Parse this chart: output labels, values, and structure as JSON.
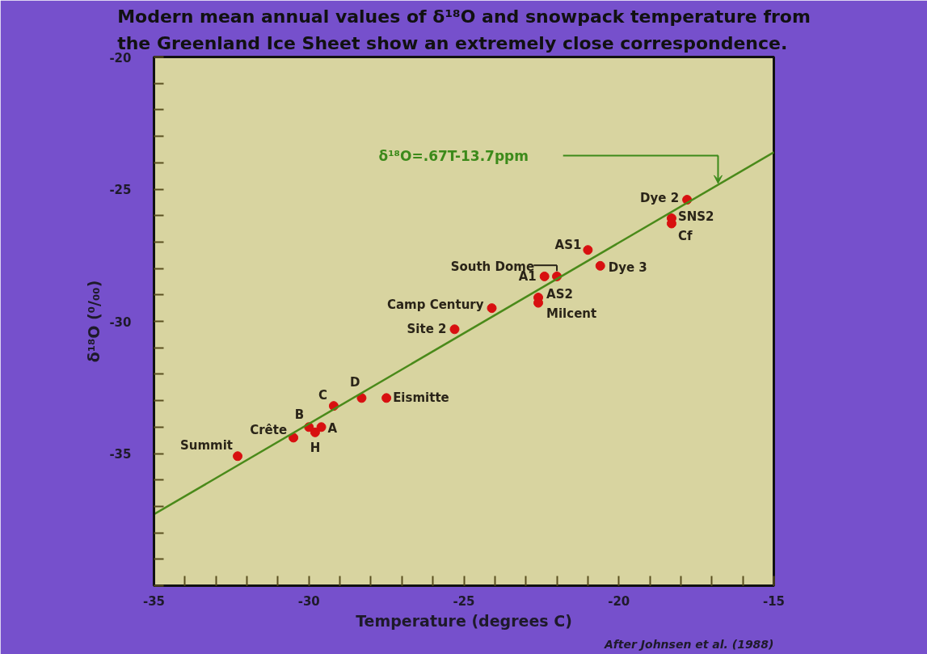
{
  "chart_data": {
    "type": "scatter",
    "title": "Modern mean annual values of δ¹⁸O and snowpack temperature from\nthe Greenland Ice Sheet show an extremely close correspondence.",
    "xlabel": "Temperature (degrees C)",
    "ylabel": "δ¹⁸O (⁰/₀₀)",
    "xlim": [
      -35,
      -15
    ],
    "ylim": [
      -40,
      -20
    ],
    "xticks": [
      -35,
      {
        "value": -34,
        "label": null
      },
      {
        "value": -33,
        "label": null
      },
      {
        "value": -32,
        "label": null
      },
      {
        "value": -31,
        "label": null
      },
      -30,
      {
        "value": -29,
        "label": null
      },
      {
        "value": -28,
        "label": null
      },
      {
        "value": -27,
        "label": null
      },
      {
        "value": -26,
        "label": null
      },
      -25,
      {
        "value": -24,
        "label": null
      },
      {
        "value": -23,
        "label": null
      },
      {
        "value": -22,
        "label": null
      },
      {
        "value": -21,
        "label": null
      },
      -20,
      {
        "value": -19,
        "label": null
      },
      {
        "value": -18,
        "label": null
      },
      {
        "value": -17,
        "label": null
      },
      {
        "value": -16,
        "label": null
      },
      -15
    ],
    "yticks": [
      {
        "value": -40,
        "label": null
      },
      {
        "value": -39,
        "label": null
      },
      {
        "value": -38,
        "label": null
      },
      {
        "value": -37,
        "label": null
      },
      {
        "value": -36,
        "label": null
      },
      -35,
      {
        "value": -34,
        "label": null
      },
      {
        "value": -33,
        "label": null
      },
      {
        "value": -32,
        "label": null
      },
      {
        "value": -31,
        "label": null
      },
      -30,
      {
        "value": -29,
        "label": null
      },
      {
        "value": -28,
        "label": null
      },
      {
        "value": -27,
        "label": null
      },
      {
        "value": -26,
        "label": null
      },
      -25,
      {
        "value": -24,
        "label": null
      },
      {
        "value": -23,
        "label": null
      },
      {
        "value": -22,
        "label": null
      },
      {
        "value": -21,
        "label": null
      },
      -20
    ],
    "grid": false,
    "series": [
      {
        "color": "#d81010",
        "x": [
          -32.3,
          -30.5,
          -30.0,
          -29.6,
          -29.8,
          -29.2,
          -28.3,
          -27.5,
          -25.3,
          -24.1,
          -22.6,
          -22.6,
          -22.4,
          -22.0,
          -21.0,
          -20.6,
          -17.8,
          -18.3,
          -18.3
        ],
        "values": [
          -35.1,
          -34.4,
          -34.0,
          -34.0,
          -34.2,
          -33.2,
          -32.9,
          -32.9,
          -30.3,
          -29.5,
          -29.1,
          -29.3,
          -28.3,
          -28.3,
          -27.3,
          -27.9,
          -25.4,
          -26.1,
          -26.3
        ]
      },
      {
        "type": "line",
        "color": "#4a8a1a",
        "x": [
          -35,
          -15
        ],
        "values": [
          -37.3,
          -23.6
        ]
      }
    ],
    "annotations": [
      {
        "text": "Summit",
        "x": -32.3,
        "y": -35.1
      },
      {
        "text": "Crête",
        "x": -30.5,
        "y": -34.4
      },
      {
        "text": "B",
        "x": -30.0,
        "y": -34.0
      },
      {
        "text": "A",
        "x": -29.6,
        "y": -34.0
      },
      {
        "text": "H",
        "x": -29.8,
        "y": -34.2
      },
      {
        "text": "C",
        "x": -29.2,
        "y": -33.2
      },
      {
        "text": "D",
        "x": -28.3,
        "y": -32.9
      },
      {
        "text": "Eismitte",
        "x": -27.5,
        "y": -32.9
      },
      {
        "text": "Site 2",
        "x": -25.3,
        "y": -30.3
      },
      {
        "text": "Camp Century",
        "x": -24.1,
        "y": -29.5
      },
      {
        "text": "AS2",
        "x": -22.6,
        "y": -29.1
      },
      {
        "text": "Milcent",
        "x": -22.6,
        "y": -29.3
      },
      {
        "text": "A1",
        "x": -22.4,
        "y": -28.3
      },
      {
        "text": "South Dome",
        "x": -22.0,
        "y": -28.3
      },
      {
        "text": "AS1",
        "x": -21.0,
        "y": -27.3
      },
      {
        "text": "Dye 3",
        "x": -20.6,
        "y": -27.9
      },
      {
        "text": "Dye 2",
        "x": -17.8,
        "y": -25.4
      },
      {
        "text": "SNS2",
        "x": -18.3,
        "y": -26.1
      },
      {
        "text": "Cf",
        "x": -18.3,
        "y": -26.3
      },
      "δ¹⁸O=.67T-13.7ppm",
      "After Johnsen et al. (1988)"
    ]
  }
}
